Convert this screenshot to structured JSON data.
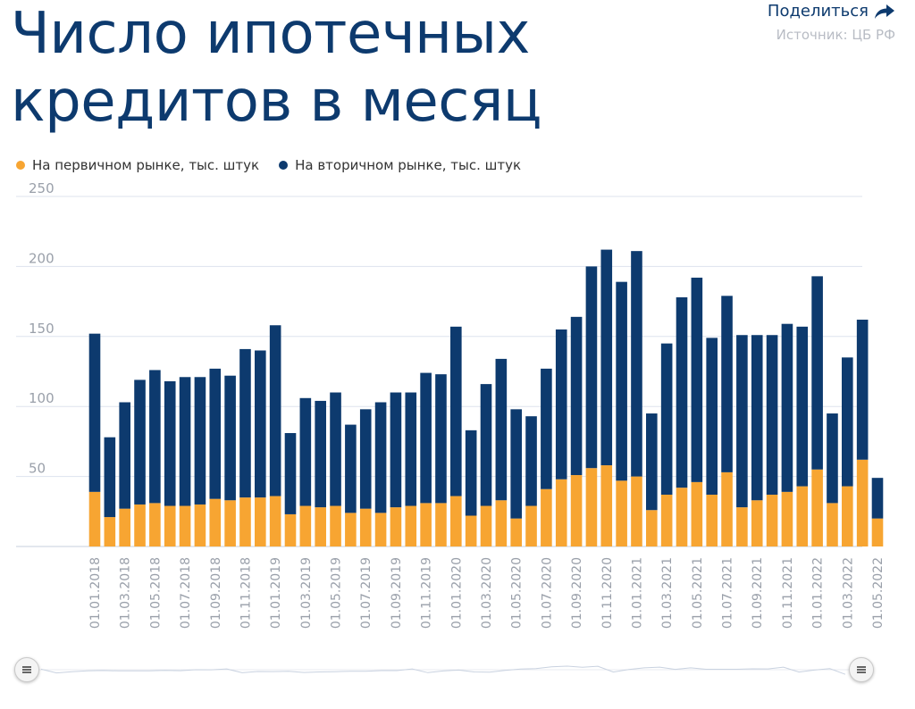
{
  "header": {
    "title_line1": "Число ипотечных",
    "title_line2": "кредитов в месяц",
    "share_label": "Поделиться",
    "source_label": "Источник: ЦБ РФ"
  },
  "colors": {
    "primary": "#f7a532",
    "secondary": "#0d3a6e",
    "grid": "#dde3ee",
    "tick_text": "#9aa0aa"
  },
  "chart_data": {
    "type": "bar",
    "stacked": true,
    "title": "Число ипотечных кредитов в месяц",
    "ylim": [
      0,
      250
    ],
    "yticks": [
      50,
      100,
      150,
      200,
      250
    ],
    "grid": true,
    "legend_position": "top-left",
    "categories": [
      "01.01.2018",
      "01.02.2018",
      "01.03.2018",
      "01.04.2018",
      "01.05.2018",
      "01.06.2018",
      "01.07.2018",
      "01.08.2018",
      "01.09.2018",
      "01.10.2018",
      "01.11.2018",
      "01.12.2018",
      "01.01.2019",
      "01.02.2019",
      "01.03.2019",
      "01.04.2019",
      "01.05.2019",
      "01.06.2019",
      "01.07.2019",
      "01.08.2019",
      "01.09.2019",
      "01.10.2019",
      "01.11.2019",
      "01.12.2019",
      "01.01.2020",
      "01.02.2020",
      "01.03.2020",
      "01.04.2020",
      "01.05.2020",
      "01.06.2020",
      "01.07.2020",
      "01.08.2020",
      "01.09.2020",
      "01.10.2020",
      "01.11.2020",
      "01.12.2020",
      "01.01.2021",
      "01.02.2021",
      "01.03.2021",
      "01.04.2021",
      "01.05.2021",
      "01.06.2021",
      "01.07.2021",
      "01.08.2021",
      "01.09.2021",
      "01.10.2021",
      "01.11.2021",
      "01.12.2021",
      "01.01.2022",
      "01.02.2022",
      "01.03.2022",
      "01.04.2022",
      "01.05.2022"
    ],
    "xtick_labels": [
      "01.01.2018",
      "",
      "01.03.2018",
      "",
      "01.05.2018",
      "",
      "01.07.2018",
      "",
      "01.09.2018",
      "",
      "01.11.2018",
      "",
      "01.01.2019",
      "",
      "01.03.2019",
      "",
      "01.05.2019",
      "",
      "01.07.2019",
      "",
      "01.09.2019",
      "",
      "01.11.2019",
      "",
      "01.01.2020",
      "",
      "01.03.2020",
      "",
      "01.05.2020",
      "",
      "01.07.2020",
      "",
      "01.09.2020",
      "",
      "01.11.2020",
      "",
      "01.01.2021",
      "",
      "01.03.2021",
      "",
      "01.05.2021",
      "",
      "01.07.2021",
      "",
      "01.09.2021",
      "",
      "01.11.2021",
      "",
      "01.01.2022",
      "",
      "01.03.2022",
      "",
      "01.05.2022"
    ],
    "series": [
      {
        "name": "На первичном рынке, тыс. штук",
        "values": [
          39,
          21,
          27,
          30,
          31,
          29,
          29,
          30,
          34,
          33,
          35,
          35,
          36,
          23,
          29,
          28,
          29,
          24,
          27,
          24,
          28,
          29,
          31,
          31,
          36,
          22,
          29,
          33,
          20,
          29,
          41,
          48,
          51,
          56,
          58,
          47,
          50,
          26,
          37,
          42,
          46,
          37,
          53,
          28,
          33,
          37,
          39,
          43,
          55,
          31,
          43,
          62,
          20
        ]
      },
      {
        "name": "На вторичном рынке, тыс. штук",
        "values": [
          113,
          57,
          76,
          89,
          95,
          89,
          92,
          91,
          93,
          89,
          106,
          105,
          122,
          58,
          77,
          76,
          81,
          63,
          71,
          79,
          82,
          81,
          93,
          92,
          121,
          61,
          87,
          101,
          78,
          64,
          86,
          107,
          113,
          144,
          154,
          142,
          161,
          69,
          108,
          136,
          146,
          112,
          126,
          123,
          118,
          114,
          120,
          114,
          138,
          64,
          92,
          100,
          29
        ]
      }
    ]
  },
  "navigator": {
    "range_start": "01.01.2018",
    "range_end": "01.05.2022"
  }
}
